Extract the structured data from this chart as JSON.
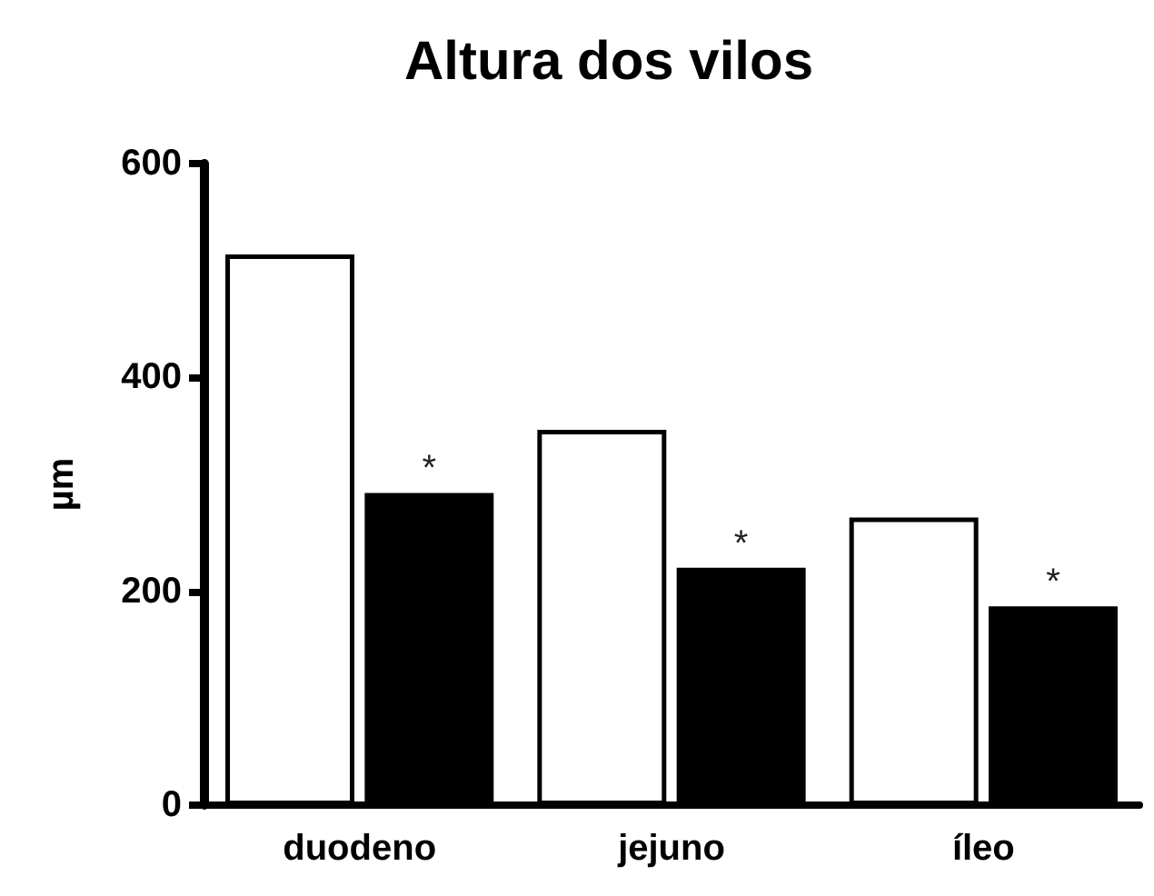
{
  "chart_data": {
    "type": "bar",
    "title": "Altura dos vilos",
    "ylabel": "µm",
    "categories": [
      "duodeno",
      "jejuno",
      "íleo"
    ],
    "series": [
      {
        "color": "#ffffff",
        "values": [
          515,
          351,
          269
        ]
      },
      {
        "color": "#000000",
        "values": [
          292,
          222,
          186
        ]
      }
    ],
    "annotations": [
      {
        "text": "*",
        "x": "duodeno",
        "y": 292
      },
      {
        "text": "*",
        "x": "jejuno",
        "y": 222
      },
      {
        "text": "*",
        "x": "íleo",
        "y": 186
      }
    ],
    "ylim": [
      0,
      600
    ],
    "yticks": [
      0,
      200,
      400,
      600
    ],
    "grid": false
  }
}
